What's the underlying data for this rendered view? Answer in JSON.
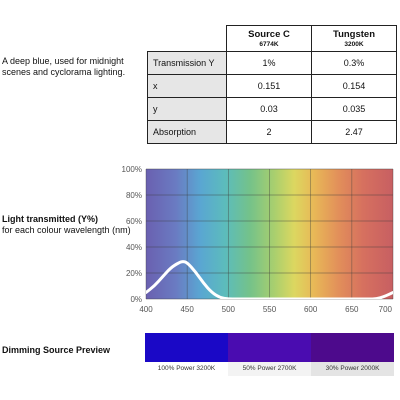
{
  "description": "A deep blue, used for midnight scenes and cyclorama lighting.",
  "table": {
    "columns": [
      {
        "name": "Source C",
        "temp": "6774K"
      },
      {
        "name": "Tungsten",
        "temp": "3200K"
      }
    ],
    "rows": [
      {
        "label": "Transmission Y",
        "values": [
          "1%",
          "0.3%"
        ]
      },
      {
        "label": "x",
        "values": [
          "0.151",
          "0.154"
        ]
      },
      {
        "label": "y",
        "values": [
          "0.03",
          "0.035"
        ]
      },
      {
        "label": "Absorption",
        "values": [
          "2",
          "2.47"
        ]
      }
    ]
  },
  "chart_title": {
    "bold": "Light transmitted (Y%)",
    "rest": "for each colour wavelength (nm)"
  },
  "chart_data": {
    "type": "line",
    "xlim": [
      400,
      700
    ],
    "ylim": [
      0,
      100
    ],
    "x_ticks": [
      "400",
      "450",
      "500",
      "550",
      "600",
      "650",
      "700"
    ],
    "y_ticks": [
      "0%",
      "20%",
      "40%",
      "60%",
      "80%",
      "100%"
    ],
    "grid": true,
    "series": [
      {
        "color": "#ffffff",
        "x": [
          400,
          410,
          420,
          430,
          440,
          445,
          450,
          460,
          470,
          480,
          490,
          500,
          510,
          520,
          530,
          540,
          550,
          560,
          570,
          580,
          590,
          600,
          610,
          620,
          630,
          640,
          650,
          660,
          670,
          680,
          690,
          700
        ],
        "y": [
          5,
          10,
          17,
          24,
          28,
          29,
          28,
          21,
          12,
          5,
          1,
          0,
          0,
          0,
          0,
          0,
          0,
          0,
          0,
          0,
          0,
          0,
          0,
          0,
          0,
          0,
          0,
          0,
          0,
          0,
          2,
          5
        ]
      }
    ]
  },
  "dimming": {
    "title": "Dimming Source Preview",
    "swatches": [
      {
        "label": "100% Power 3200K",
        "color": "#1a08c6",
        "caption_bg": "#ffffff"
      },
      {
        "label": "50% Power 2700K",
        "color": "#4a0cb0",
        "caption_bg": "#f3f3f3"
      },
      {
        "label": "30% Power 2000K",
        "color": "#4d0a8c",
        "caption_bg": "#e4e4e4"
      }
    ]
  }
}
